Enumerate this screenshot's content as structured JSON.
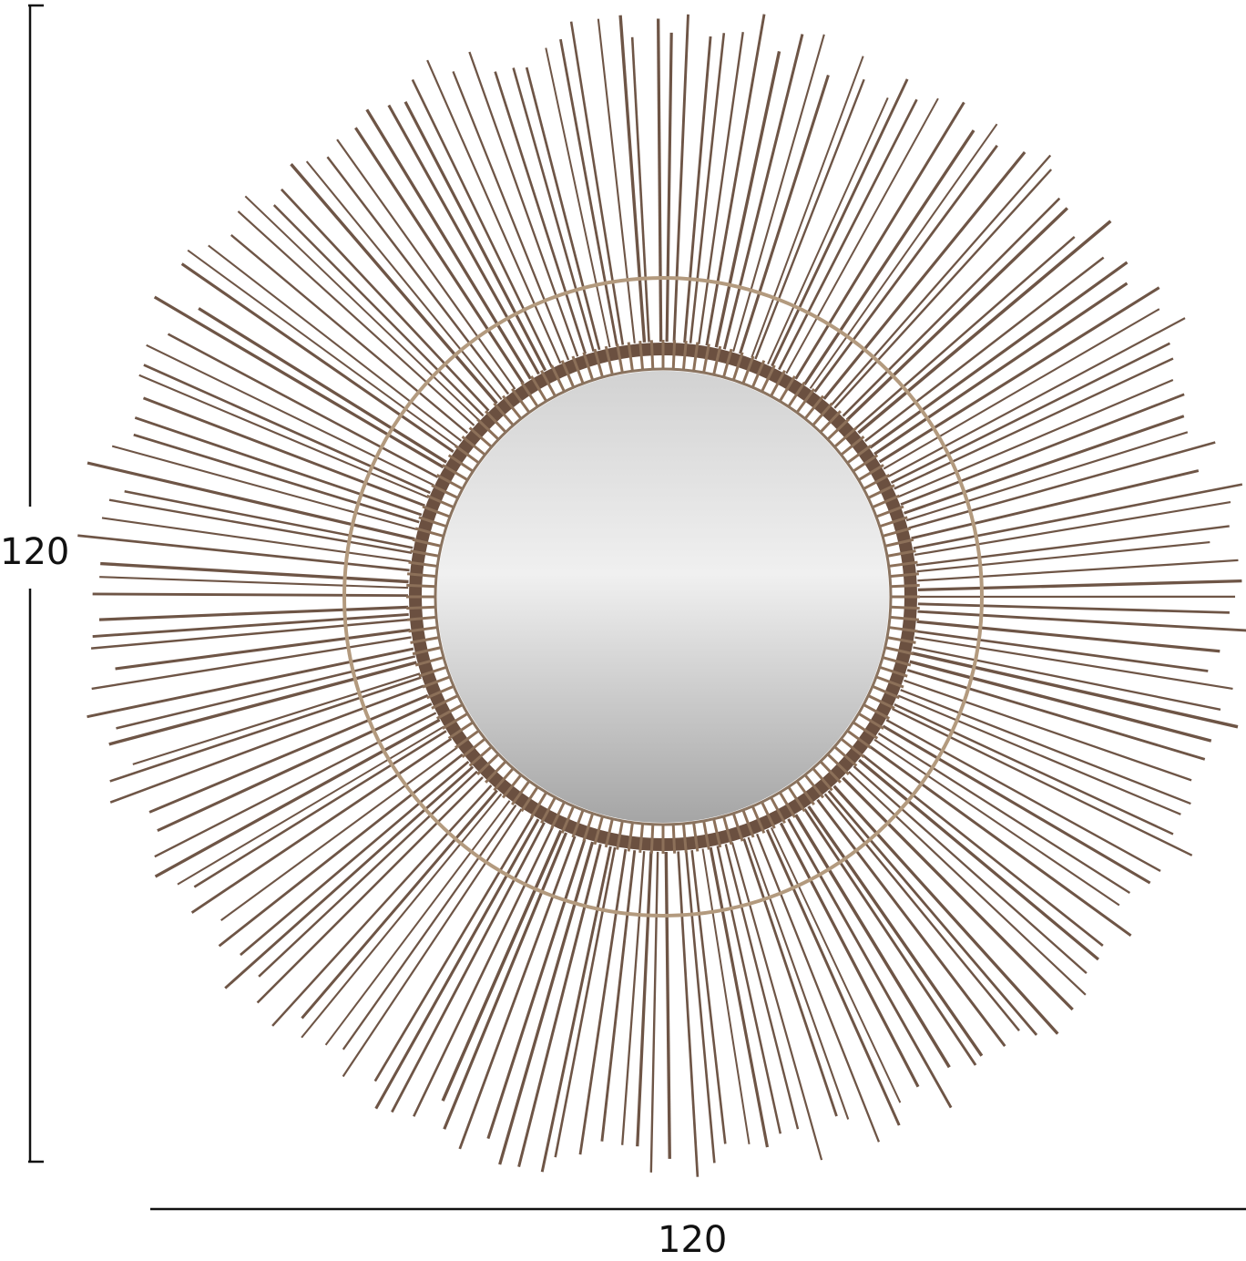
{
  "dimensions": {
    "height_label": "120",
    "width_label": "120"
  },
  "colors": {
    "spoke": "#6e5546",
    "ring": "#b39a7e",
    "mirror_light": "#f2f2f2",
    "mirror_dark": "#9a9a9a",
    "line": "#111111"
  }
}
